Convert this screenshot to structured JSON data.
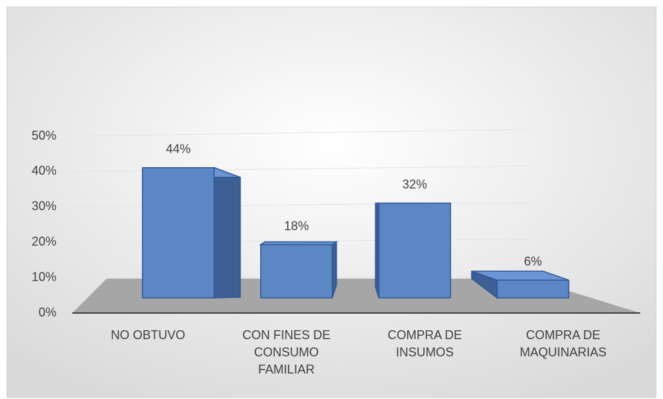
{
  "chart_data": {
    "type": "bar3d",
    "categories": [
      "NO OBTUVO",
      "CON FINES DE CONSUMO FAMILIAR",
      "COMPRA DE INSUMOS",
      "COMPRA DE MAQUINARIAS"
    ],
    "values": [
      44,
      18,
      32,
      6
    ],
    "value_labels": [
      "44%",
      "18%",
      "32%",
      "6%"
    ],
    "color": "#5b87c5",
    "ylim": [
      0,
      50
    ],
    "yticks": [
      {
        "value": 0,
        "label": "0%"
      },
      {
        "value": 10,
        "label": "10%"
      },
      {
        "value": 20,
        "label": "20%"
      },
      {
        "value": 30,
        "label": "30%"
      },
      {
        "value": 40,
        "label": "40%"
      },
      {
        "value": 50,
        "label": "50%"
      }
    ],
    "grid": true
  }
}
